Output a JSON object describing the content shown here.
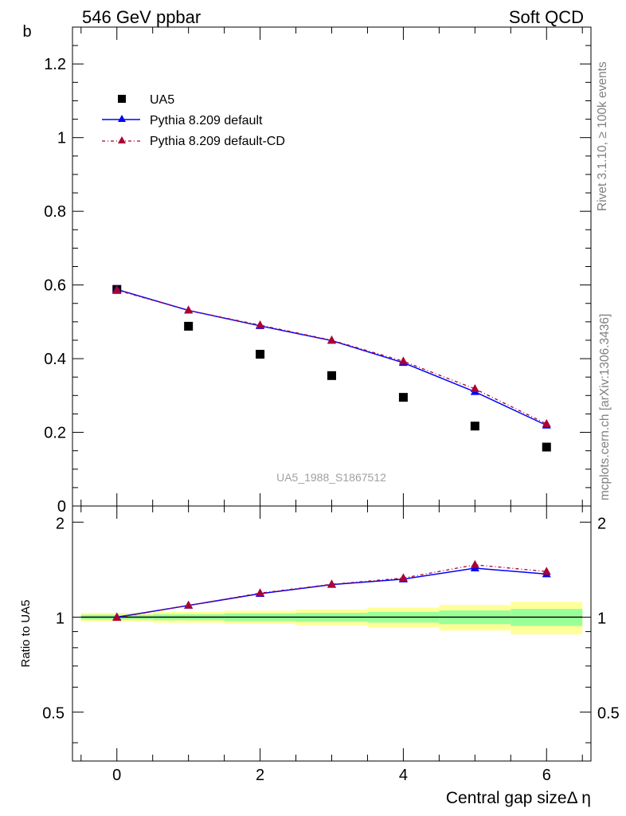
{
  "header": {
    "left_label": "546 GeV ppbar",
    "right_label": "Soft QCD"
  },
  "side_labels": {
    "rivet": "Rivet 3.1.10, ≥ 100k events",
    "mcplots": "mcplots.cern.ch [arXiv:1306.3436]"
  },
  "watermark": "UA5_1988_S1867512",
  "colors": {
    "data": "#000000",
    "default": "#0000ff",
    "default_cd": "#aa0033",
    "band_inner": "#99ff99",
    "band_outer": "#ffff99"
  },
  "chart_data": [
    {
      "type": "scatter",
      "panel": "main",
      "xlabel": "",
      "ylabel": "b",
      "xlim": [
        -0.62,
        6.62
      ],
      "ylim": [
        0,
        1.3
      ],
      "y_ticks": [
        0,
        0.2,
        0.4,
        0.6,
        0.8,
        1,
        1.2
      ],
      "y_tick_labels": [
        "0",
        "0.2",
        "0.4",
        "0.6",
        "0.8",
        "1",
        "1.2"
      ],
      "legend_position": "top-left",
      "series": [
        {
          "name": "UA5",
          "style": "markers-square",
          "x": [
            0,
            1,
            2,
            3,
            4,
            5,
            6
          ],
          "y": [
            0.588,
            0.488,
            0.412,
            0.354,
            0.295,
            0.217,
            0.16
          ]
        },
        {
          "name": "Pythia 8.209 default",
          "style": "line-solid-triangle",
          "x": [
            0,
            1,
            2,
            3,
            4,
            5,
            6
          ],
          "y": [
            0.588,
            0.531,
            0.489,
            0.449,
            0.389,
            0.31,
            0.219
          ]
        },
        {
          "name": "Pythia 8.209 default-CD",
          "style": "line-dashdot-triangle",
          "x": [
            0,
            1,
            2,
            3,
            4,
            5,
            6
          ],
          "y": [
            0.586,
            0.531,
            0.491,
            0.45,
            0.393,
            0.318,
            0.223
          ]
        }
      ]
    },
    {
      "type": "line",
      "panel": "ratio",
      "xlabel": "Central gap sizeΔ η",
      "ylabel": "Ratio to UA5",
      "xlim": [
        -0.62,
        6.62
      ],
      "ylim": [
        0.35,
        2.25
      ],
      "y_ticks": [
        0.5,
        1,
        2
      ],
      "y_tick_labels": [
        "0.5",
        "1",
        "2"
      ],
      "x_ticks": [
        0,
        2,
        4,
        6
      ],
      "x_tick_labels": [
        "0",
        "2",
        "4",
        "6"
      ],
      "reference": 1,
      "bands": {
        "x": [
          0,
          1,
          2,
          3,
          4,
          5,
          6
        ],
        "inner": [
          0.017,
          0.022,
          0.028,
          0.032,
          0.039,
          0.05,
          0.062
        ],
        "outer": [
          0.032,
          0.04,
          0.048,
          0.058,
          0.073,
          0.093,
          0.118
        ]
      },
      "series": [
        {
          "name": "Pythia 8.209 default",
          "x": [
            0,
            1,
            2,
            3,
            4,
            5,
            6
          ],
          "y": [
            1.0,
            1.089,
            1.187,
            1.268,
            1.32,
            1.43,
            1.37
          ]
        },
        {
          "name": "Pythia 8.209 default-CD",
          "x": [
            0,
            1,
            2,
            3,
            4,
            5,
            6
          ],
          "y": [
            0.997,
            1.089,
            1.192,
            1.271,
            1.33,
            1.465,
            1.395
          ]
        }
      ]
    }
  ]
}
